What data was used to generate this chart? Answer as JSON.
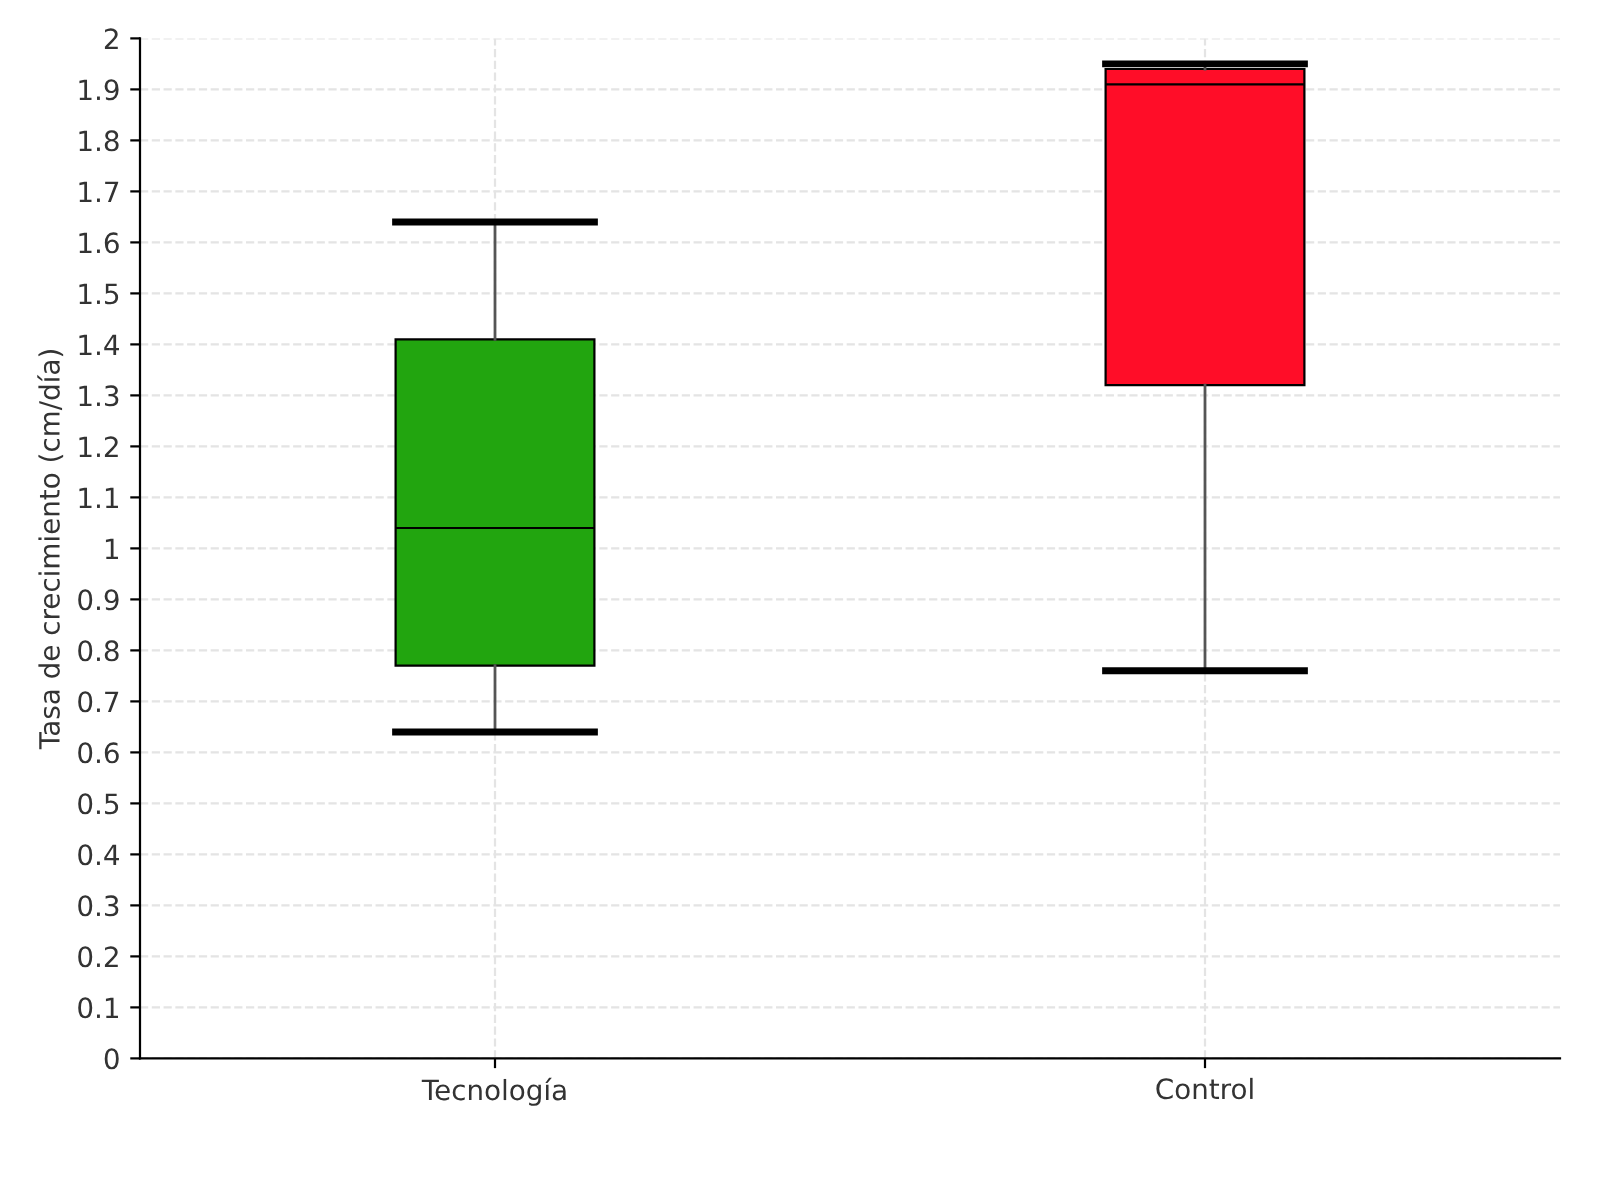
{
  "chart_data": {
    "type": "box",
    "ylabel": "Tasa de crecimiento (cm/día)",
    "categories": [
      "Tecnología",
      "Control"
    ],
    "boxes": [
      {
        "low": 0.64,
        "q1": 0.77,
        "median": 1.04,
        "q3": 1.41,
        "high": 1.64
      },
      {
        "low": 0.76,
        "q1": 1.32,
        "median": 1.91,
        "q3": 1.94,
        "high": 1.95
      }
    ],
    "colors": [
      "#22a50f",
      "#ff0d28"
    ],
    "ylim": [
      0,
      2
    ],
    "yticks": [
      0,
      0.1,
      0.2,
      0.3,
      0.4,
      0.5,
      0.6,
      0.7,
      0.8,
      0.9,
      1,
      1.1,
      1.2,
      1.3,
      1.4,
      1.5,
      1.6,
      1.7,
      1.8,
      1.9,
      2
    ],
    "grid": true
  }
}
